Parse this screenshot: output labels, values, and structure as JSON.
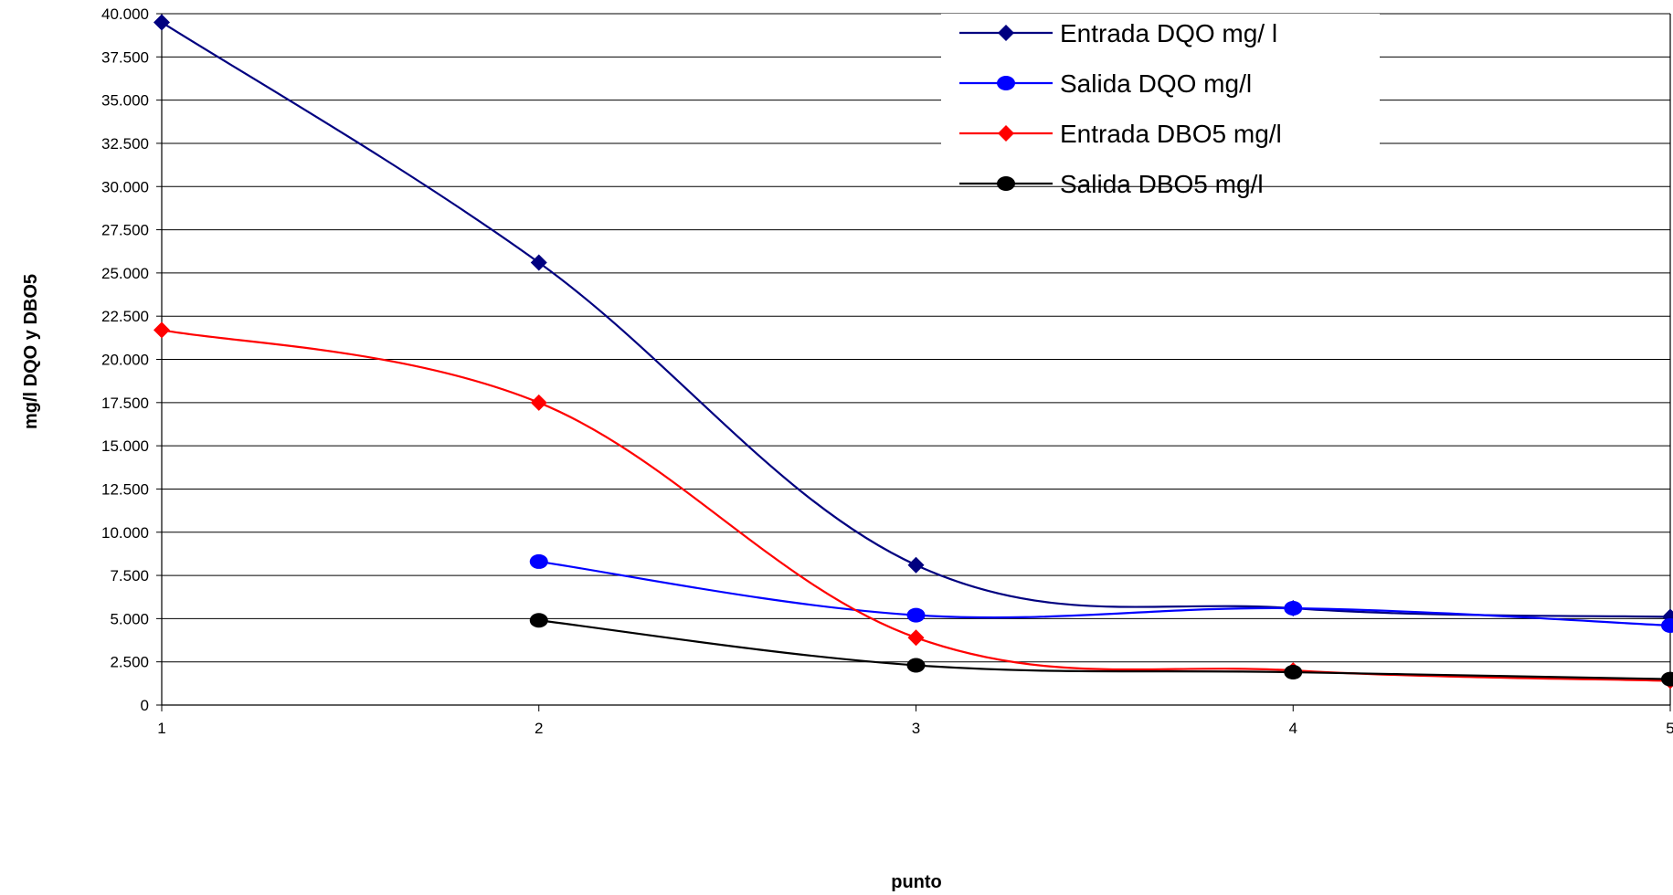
{
  "chart_data": {
    "type": "line",
    "x": [
      1,
      2,
      3,
      4,
      5
    ],
    "xlabel": "punto",
    "ylabel": "mg/l DQO y DBO5",
    "ylim": [
      0,
      40000
    ],
    "xlim": [
      1,
      5
    ],
    "y_ticks": [
      "0",
      "2.500",
      "5.000",
      "7.500",
      "10.000",
      "12.500",
      "15.000",
      "17.500",
      "20.000",
      "22.500",
      "25.000",
      "27.500",
      "30.000",
      "32.500",
      "35.000",
      "37.500",
      "40.000"
    ],
    "x_ticks": [
      "1",
      "2",
      "3",
      "4",
      "5"
    ],
    "grid": "horizontal",
    "legend_position": "top-right",
    "series": [
      {
        "name": "Entrada DQO mg/ l",
        "color": "#000080",
        "marker": "diamond",
        "values": [
          39500,
          25600,
          8100,
          5600,
          5100
        ]
      },
      {
        "name": "Salida DQO mg/l",
        "color": "#0000ff",
        "marker": "circle",
        "values": [
          null,
          8300,
          5200,
          5600,
          4600
        ]
      },
      {
        "name": "Entrada DBO5 mg/l",
        "color": "#ff0000",
        "marker": "diamond",
        "values": [
          21700,
          17500,
          3900,
          2000,
          1400
        ]
      },
      {
        "name": "Salida DBO5 mg/l",
        "color": "#000000",
        "marker": "circle",
        "values": [
          null,
          4900,
          2300,
          1900,
          1500
        ]
      }
    ]
  }
}
